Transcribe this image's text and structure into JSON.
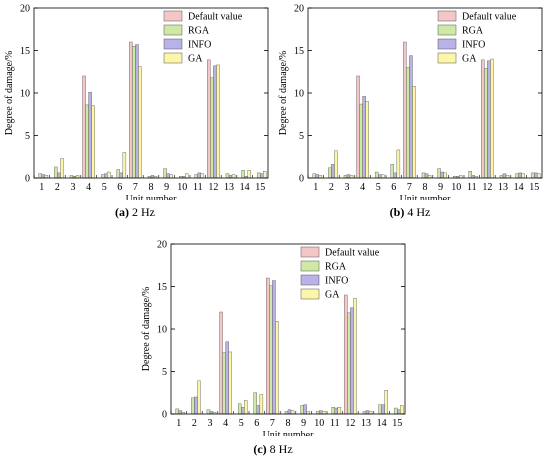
{
  "chart_data": [
    {
      "type": "bar",
      "caption_letter": "(a)",
      "caption_text": " 2 Hz",
      "xlabel": "Unit number",
      "ylabel": "Degree of damage/%",
      "ylim": [
        0,
        20
      ],
      "yticks": [
        0,
        5,
        10,
        15,
        20
      ],
      "categories": [
        "1",
        "2",
        "3",
        "4",
        "5",
        "6",
        "7",
        "8",
        "9",
        "10",
        "11",
        "12",
        "13",
        "14",
        "15"
      ],
      "legend_position": "top-right",
      "series": [
        {
          "name": "Default value",
          "color": "#f4c6c6",
          "values": [
            0,
            0,
            0,
            12.0,
            0,
            0,
            16.0,
            0,
            0,
            0,
            0,
            13.9,
            0,
            0,
            0
          ]
        },
        {
          "name": "RGA",
          "color": "#cfe8a6",
          "values": [
            0.5,
            1.3,
            0.3,
            8.6,
            0.4,
            1.0,
            15.5,
            0.2,
            1.1,
            0.2,
            0.4,
            11.8,
            0.5,
            0.9,
            0.6
          ]
        },
        {
          "name": "INFO",
          "color": "#b9b2e8",
          "values": [
            0.4,
            0.6,
            0.2,
            10.1,
            0.5,
            0.6,
            15.7,
            0.3,
            0.5,
            0.2,
            0.6,
            13.2,
            0.3,
            0.2,
            0.5
          ]
        },
        {
          "name": "GA",
          "color": "#fbf6a8",
          "values": [
            0.3,
            2.3,
            0.3,
            8.5,
            0.7,
            3.0,
            13.1,
            0.2,
            0.4,
            0.5,
            0.5,
            13.3,
            0.4,
            0.9,
            0.8
          ]
        }
      ]
    },
    {
      "type": "bar",
      "caption_letter": "(b)",
      "caption_text": " 4 Hz",
      "xlabel": "Unit number",
      "ylabel": "Degree of damage/%",
      "ylim": [
        0,
        20
      ],
      "yticks": [
        0,
        5,
        10,
        15,
        20
      ],
      "categories": [
        "1",
        "2",
        "3",
        "4",
        "5",
        "6",
        "7",
        "8",
        "9",
        "10",
        "11",
        "12",
        "13",
        "14",
        "15"
      ],
      "legend_position": "top-right",
      "series": [
        {
          "name": "Default value",
          "color": "#f4c6c6",
          "values": [
            0,
            0,
            0,
            12.0,
            0,
            0,
            16.0,
            0,
            0,
            0,
            0,
            13.9,
            0,
            0,
            0
          ]
        },
        {
          "name": "RGA",
          "color": "#cfe8a6",
          "values": [
            0.5,
            1.2,
            0.3,
            8.7,
            0.7,
            1.6,
            13.0,
            0.6,
            1.1,
            0.2,
            0.8,
            12.9,
            0.3,
            0.5,
            0.6
          ]
        },
        {
          "name": "INFO",
          "color": "#b9b2e8",
          "values": [
            0.4,
            1.6,
            0.4,
            9.6,
            0.4,
            0.6,
            14.4,
            0.5,
            0.7,
            0.2,
            0.3,
            13.8,
            0.5,
            0.6,
            0.6
          ]
        },
        {
          "name": "GA",
          "color": "#fbf6a8",
          "values": [
            0.3,
            3.2,
            0.3,
            9.0,
            0.4,
            3.3,
            10.8,
            0.3,
            0.6,
            0.3,
            0.2,
            14.0,
            0.3,
            0.5,
            0.5
          ]
        }
      ]
    },
    {
      "type": "bar",
      "caption_letter": "(c)",
      "caption_text": " 8 Hz",
      "xlabel": "Unit number",
      "ylabel": "Degree of damage/%",
      "ylim": [
        0,
        20
      ],
      "yticks": [
        0,
        5,
        10,
        15,
        20
      ],
      "categories": [
        "1",
        "2",
        "3",
        "4",
        "5",
        "6",
        "7",
        "8",
        "9",
        "10",
        "11",
        "12",
        "13",
        "14",
        "15"
      ],
      "legend_position": "top-right",
      "series": [
        {
          "name": "Default value",
          "color": "#f4c6c6",
          "values": [
            0,
            0,
            0,
            12.0,
            0,
            0,
            16.0,
            0,
            0,
            0,
            0,
            14.0,
            0,
            0,
            0
          ]
        },
        {
          "name": "RGA",
          "color": "#cfe8a6",
          "values": [
            0.6,
            1.9,
            0.5,
            7.2,
            1.2,
            2.5,
            15.1,
            0.3,
            1.0,
            0.3,
            0.8,
            11.9,
            0.3,
            1.1,
            0.7
          ]
        },
        {
          "name": "INFO",
          "color": "#b9b2e8",
          "values": [
            0.4,
            2.0,
            0.3,
            8.5,
            0.8,
            1.0,
            15.7,
            0.5,
            1.1,
            0.4,
            0.7,
            12.5,
            0.4,
            1.1,
            0.5
          ]
        },
        {
          "name": "GA",
          "color": "#fbf6a8",
          "values": [
            0.2,
            3.9,
            0.2,
            7.3,
            1.6,
            2.3,
            10.9,
            0.4,
            0.3,
            0.3,
            0.8,
            13.6,
            0.3,
            2.8,
            1.0
          ]
        }
      ]
    }
  ]
}
